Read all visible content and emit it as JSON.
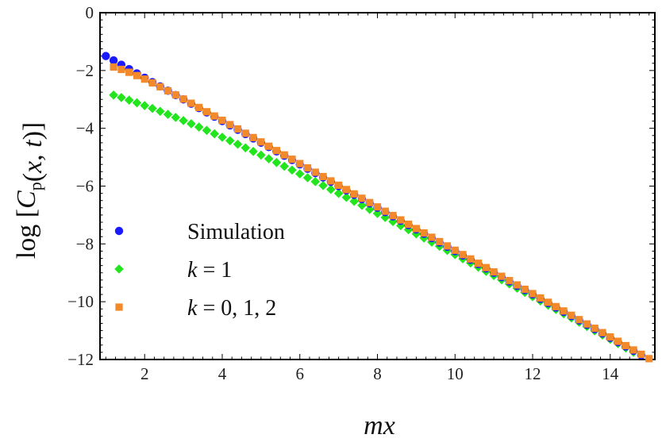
{
  "chart_data": {
    "type": "scatter",
    "title": "",
    "xlabel": "mx",
    "ylabel": "log [C_p(x,t)]",
    "xlim": [
      0.85,
      15.15
    ],
    "ylim": [
      -12,
      0
    ],
    "xticks": [
      2,
      4,
      6,
      8,
      10,
      12,
      14
    ],
    "yticks": [
      0,
      -2,
      -4,
      -6,
      -8,
      -10,
      -12
    ],
    "xtick_labels": [
      "2",
      "4",
      "6",
      "8",
      "10",
      "12",
      "14"
    ],
    "ytick_labels": [
      "0",
      "−2",
      "−4",
      "−6",
      "−8",
      "−10",
      "−12"
    ],
    "legend_position": "left-lower-middle",
    "series": [
      {
        "name": "Simulation",
        "label": "Simulation",
        "marker": "circle",
        "color": "#1a1aff",
        "x_start": 1.0,
        "x_end": 14.8,
        "x_step": 0.2,
        "y_start": -1.5,
        "y_end": -11.85
      },
      {
        "name": "k = 1",
        "label": "k = 1",
        "marker": "diamond",
        "color": "#22e51e",
        "x_start": 1.2,
        "x_end": 14.6,
        "x_step": 0.2,
        "y_start": -2.85,
        "y_end": -11.72,
        "y_converge_to": "Simulation",
        "decay": 0.28
      },
      {
        "name": "k = 0, 1, 2",
        "label": "k = 0, 1, 2",
        "marker": "square",
        "color": "#f28a2b",
        "x_start": 1.2,
        "x_end": 15.0,
        "x_step": 0.2,
        "y_start": -1.88,
        "y_end": -11.97,
        "y_converge_to": "Simulation",
        "decay": 1.5
      }
    ]
  }
}
